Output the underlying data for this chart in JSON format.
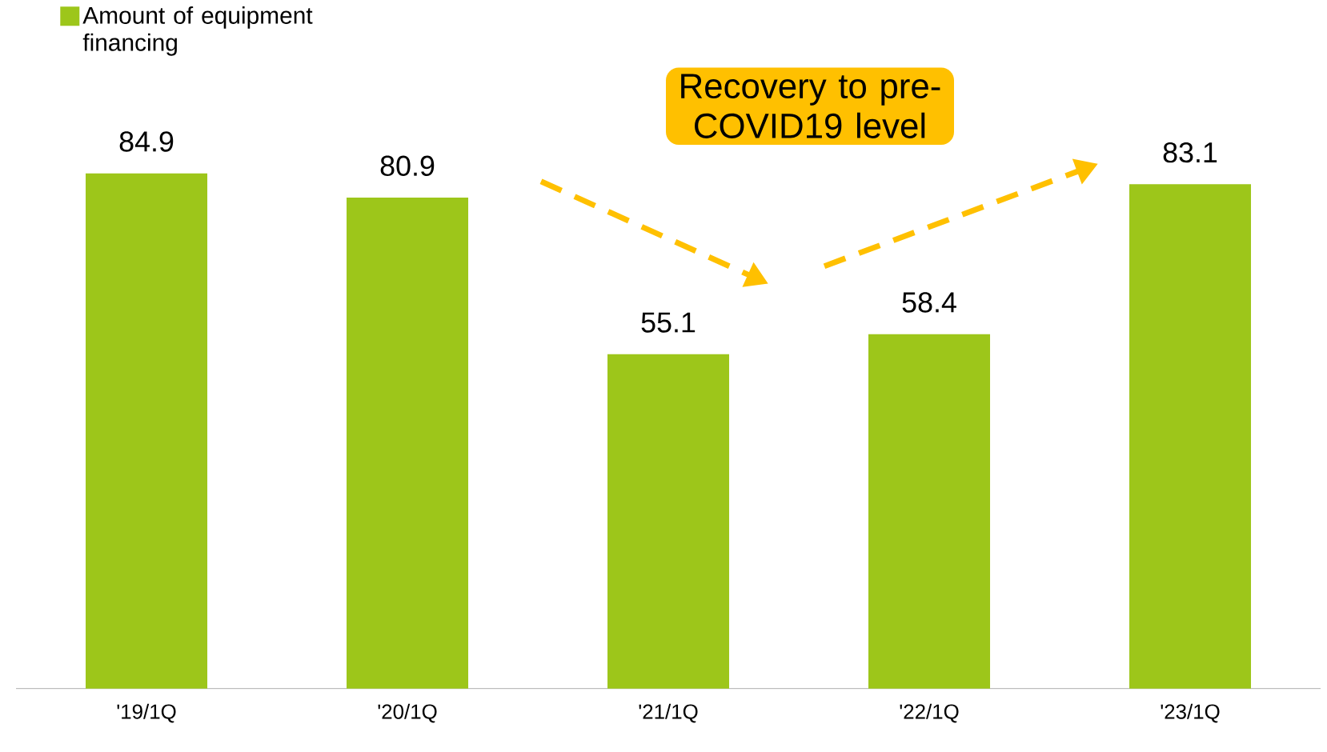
{
  "chart_data": {
    "type": "bar",
    "categories": [
      "'19/1Q",
      "'20/1Q",
      "'21/1Q",
      "'22/1Q",
      "'23/1Q"
    ],
    "series": [
      {
        "name": "Amount of equipment financing",
        "color": "#9dc61a",
        "values": [
          84.9,
          80.9,
          55.1,
          58.4,
          83.1
        ]
      }
    ],
    "data_labels": true,
    "legend": "top left",
    "annotations": [
      "Recovery to pre-COVID19 level"
    ]
  }
}
